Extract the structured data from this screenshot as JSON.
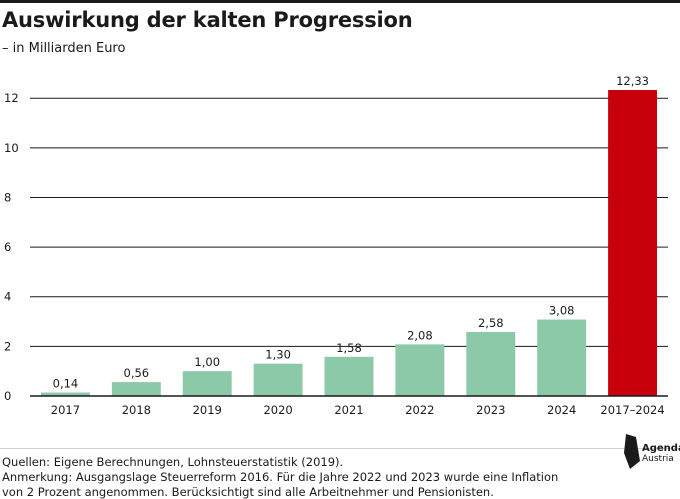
{
  "header": {
    "title": "Auswirkung der kalten Progression",
    "subtitle": "– in Milliarden Euro"
  },
  "chart_data": {
    "type": "bar",
    "categories": [
      "2017",
      "2018",
      "2019",
      "2020",
      "2021",
      "2022",
      "2023",
      "2024",
      "2017–2024"
    ],
    "values": [
      0.14,
      0.56,
      1.0,
      1.3,
      1.58,
      2.08,
      2.58,
      3.08,
      12.33
    ],
    "value_labels": [
      "0,14",
      "0,56",
      "1,00",
      "1,30",
      "1,58",
      "2,08",
      "2,58",
      "3,08",
      "12,33"
    ],
    "title": "Auswirkung der kalten Progression",
    "subtitle": "– in Milliarden Euro",
    "ylim": [
      0,
      12.33
    ],
    "yticks": [
      0,
      2,
      4,
      6,
      8,
      10,
      12
    ],
    "grid": true,
    "colors": {
      "default": "#8bc9a9",
      "highlight": "#c8000b"
    },
    "highlight_index": 8
  },
  "footer": {
    "source": "Quellen: Eigene Berechnungen, Lohnsteuerstatistik (2019).",
    "note_line1": "Anmerkung: Ausgangslage Steuerreform 2016. Für die Jahre 2022 und 2023 wurde eine Inflation",
    "note_line2": "von 2 Prozent angenommen. Berücksichtigt sind alle Arbeitnehmer und Pensionisten."
  },
  "logo": {
    "line1": "Agenda",
    "line2": "Austria"
  }
}
